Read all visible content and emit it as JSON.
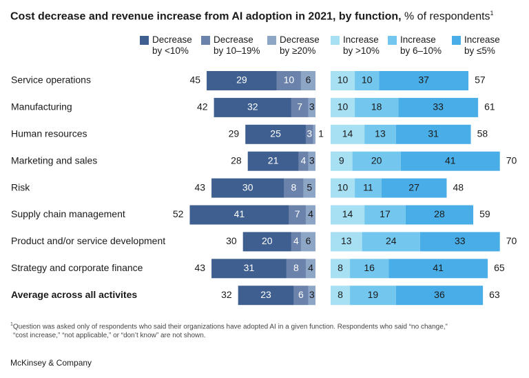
{
  "title": {
    "bold": "Cost decrease and revenue increase from AI adoption in 2021, by function,",
    "light": " % of respondents",
    "sup": "1"
  },
  "legend": [
    {
      "line1": "Decrease",
      "line2": "by <10%",
      "color": "#3e5f8f"
    },
    {
      "line1": "Decrease",
      "line2": "by 10–19%",
      "color": "#6b82ab"
    },
    {
      "line1": "Decrease",
      "line2": "by ≥20%",
      "color": "#8ea6c6"
    },
    {
      "line1": "Increase",
      "line2": "by >10%",
      "color": "#a7e0f3"
    },
    {
      "line1": "Increase",
      "line2": "by 6–10%",
      "color": "#73c6ee"
    },
    {
      "line1": "Increase",
      "line2": "by ≤5%",
      "color": "#49aee7"
    }
  ],
  "chart_data": {
    "type": "bar",
    "orientation": "horizontal",
    "stacked": "diverging",
    "unit": "% of respondents",
    "categories": [
      "Service operations",
      "Manufacturing",
      "Human resources",
      "Marketing and sales",
      "Risk",
      "Supply chain management",
      "Product and/or service development",
      "Strategy and corporate finance",
      "Average across all activites"
    ],
    "bold_categories": [
      "Average across all activites"
    ],
    "decrease_totals": [
      45,
      42,
      29,
      28,
      43,
      52,
      30,
      43,
      32
    ],
    "increase_totals": [
      57,
      61,
      58,
      70,
      48,
      59,
      70,
      65,
      63
    ],
    "decrease_series": [
      {
        "name": "Decrease by <10%",
        "color": "#3e5f8f",
        "values": [
          29,
          32,
          25,
          21,
          30,
          41,
          20,
          31,
          23
        ]
      },
      {
        "name": "Decrease by 10–19%",
        "color": "#6b82ab",
        "values": [
          10,
          7,
          3,
          4,
          8,
          7,
          4,
          8,
          6
        ]
      },
      {
        "name": "Decrease by ≥20%",
        "color": "#8ea6c6",
        "values": [
          6,
          3,
          1,
          3,
          5,
          4,
          6,
          4,
          3
        ]
      }
    ],
    "increase_series": [
      {
        "name": "Increase by >10%",
        "color": "#a7e0f3",
        "values": [
          10,
          10,
          14,
          9,
          10,
          14,
          13,
          8,
          8
        ]
      },
      {
        "name": "Increase by 6–10%",
        "color": "#73c6ee",
        "values": [
          10,
          18,
          13,
          20,
          11,
          17,
          24,
          16,
          19
        ]
      },
      {
        "name": "Increase by ≤5%",
        "color": "#49aee7",
        "values": [
          37,
          33,
          31,
          41,
          27,
          28,
          33,
          41,
          36
        ]
      }
    ],
    "xlabel": "",
    "ylabel": ""
  },
  "footnote": {
    "sup": "1",
    "line1": "Question was asked only of respondents who said their organizations have adopted AI in a given function. Respondents who said “no change,”",
    "line2": "“cost increase,” “not applicable,” or “don’t know” are not shown."
  },
  "brand": "McKinsey & Company"
}
